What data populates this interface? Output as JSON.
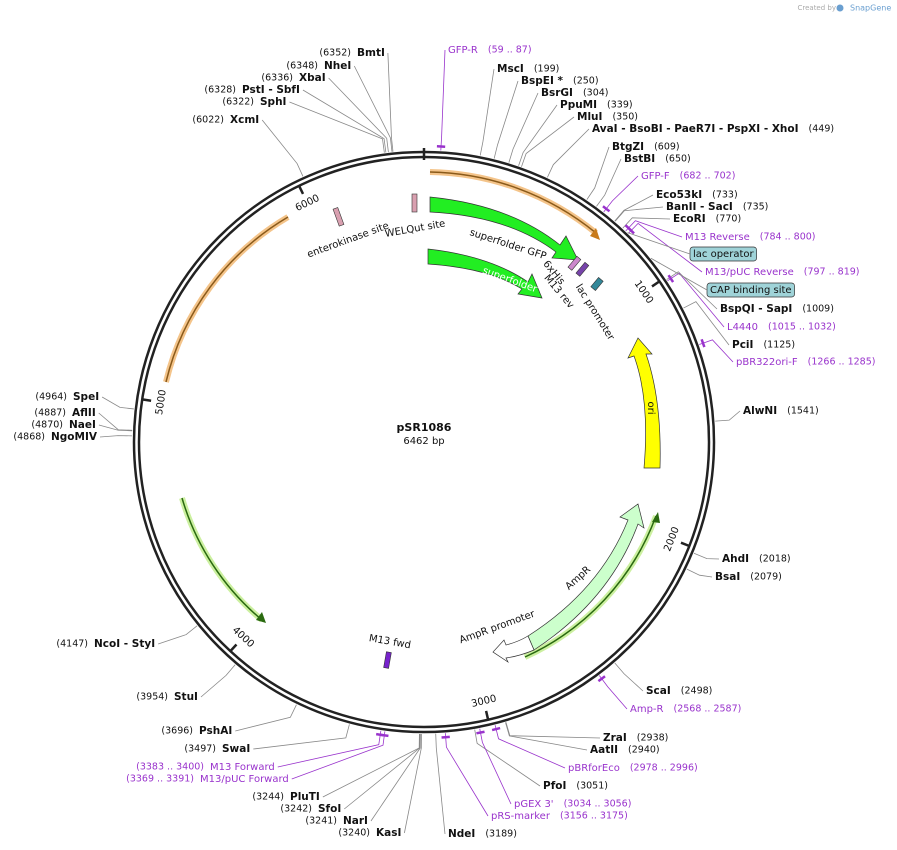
{
  "header": {
    "created_by": "Created by",
    "brand": "SnapGene"
  },
  "plasmid": {
    "name": "pSR1086",
    "size": "6462 bp"
  },
  "ticks": [
    "1000",
    "2000",
    "3000",
    "4000",
    "5000",
    "6000"
  ],
  "enzymes": [
    {
      "name": "MscI",
      "position": "(199)"
    },
    {
      "name": "BspEI *",
      "position": "(250)"
    },
    {
      "name": "BsrGI",
      "position": "(304)"
    },
    {
      "name": "PpuMI",
      "position": "(339)"
    },
    {
      "name": "MluI",
      "position": "(350)"
    },
    {
      "name": "AvaI - BsoBI - PaeR7I - PspXI - XhoI",
      "position": "(449)"
    },
    {
      "name": "BtgZI",
      "position": "(609)"
    },
    {
      "name": "BstBI",
      "position": "(650)"
    },
    {
      "name": "Eco53kI",
      "position": "(733)"
    },
    {
      "name": "BanII - SacI",
      "position": "(735)"
    },
    {
      "name": "EcoRI",
      "position": "(770)"
    },
    {
      "name": "BspQI - SapI",
      "position": "(1009)"
    },
    {
      "name": "PciI",
      "position": "(1125)"
    },
    {
      "name": "AlwNI",
      "position": "(1541)"
    },
    {
      "name": "AhdI",
      "position": "(2018)"
    },
    {
      "name": "BsaI",
      "position": "(2079)"
    },
    {
      "name": "ScaI",
      "position": "(2498)"
    },
    {
      "name": "ZraI",
      "position": "(2938)"
    },
    {
      "name": "AatII",
      "position": "(2940)"
    },
    {
      "name": "PfoI",
      "position": "(3051)"
    },
    {
      "name": "NdeI",
      "position": "(3189)"
    },
    {
      "name": "KasI",
      "position": "(3240)"
    },
    {
      "name": "NarI",
      "position": "(3241)"
    },
    {
      "name": "SfoI",
      "position": "(3242)"
    },
    {
      "name": "PluTI",
      "position": "(3244)"
    },
    {
      "name": "SwaI",
      "position": "(3497)"
    },
    {
      "name": "PshAI",
      "position": "(3696)"
    },
    {
      "name": "StuI",
      "position": "(3954)"
    },
    {
      "name": "NcoI - StyI",
      "position": "(4147)"
    },
    {
      "name": "NgoMIV",
      "position": "(4868)"
    },
    {
      "name": "NaeI",
      "position": "(4870)"
    },
    {
      "name": "AflII",
      "position": "(4887)"
    },
    {
      "name": "SpeI",
      "position": "(4964)"
    },
    {
      "name": "XcmI",
      "position": "(6022)"
    },
    {
      "name": "SphI",
      "position": "(6322)"
    },
    {
      "name": "PstI - SbfI",
      "position": "(6328)"
    },
    {
      "name": "XbaI",
      "position": "(6336)"
    },
    {
      "name": "NheI",
      "position": "(6348)"
    },
    {
      "name": "BmtI",
      "position": "(6352)"
    }
  ],
  "primers": [
    {
      "name": "GFP-R",
      "position": "(59 .. 87)"
    },
    {
      "name": "GFP-F",
      "position": "(682 .. 702)"
    },
    {
      "name": "M13 Reverse",
      "position": "(784 .. 800)"
    },
    {
      "name": "M13/pUC Reverse",
      "position": "(797 .. 819)"
    },
    {
      "name": "L4440",
      "position": "(1015 .. 1032)"
    },
    {
      "name": "pBR322ori-F",
      "position": "(1266 .. 1285)"
    },
    {
      "name": "Amp-R",
      "position": "(2568 .. 2587)"
    },
    {
      "name": "pBRforEco",
      "position": "(2978 .. 2996)"
    },
    {
      "name": "pGEX 3'",
      "position": "(3034 .. 3056)"
    },
    {
      "name": "pRS-marker",
      "position": "(3156 .. 3175)"
    },
    {
      "name": "M13 Forward",
      "position": "(3383 .. 3400)"
    },
    {
      "name": "M13/pUC Forward",
      "position": "(3369 .. 3391)"
    }
  ],
  "boxed_features": [
    "lac operator",
    "CAP binding site"
  ],
  "features": {
    "gfp1": "superfolder GFP",
    "gfp2": "superfolder GFP",
    "ori": "ori",
    "ampr": "AmpR",
    "ampr_promoter": "AmpR promoter",
    "enterokinase": "enterokinase site",
    "welqut": "WELQut site",
    "his": "6xHis",
    "m13rev": "M13 rev",
    "lacp": "lac promoter",
    "m13fwd": "M13 fwd"
  }
}
